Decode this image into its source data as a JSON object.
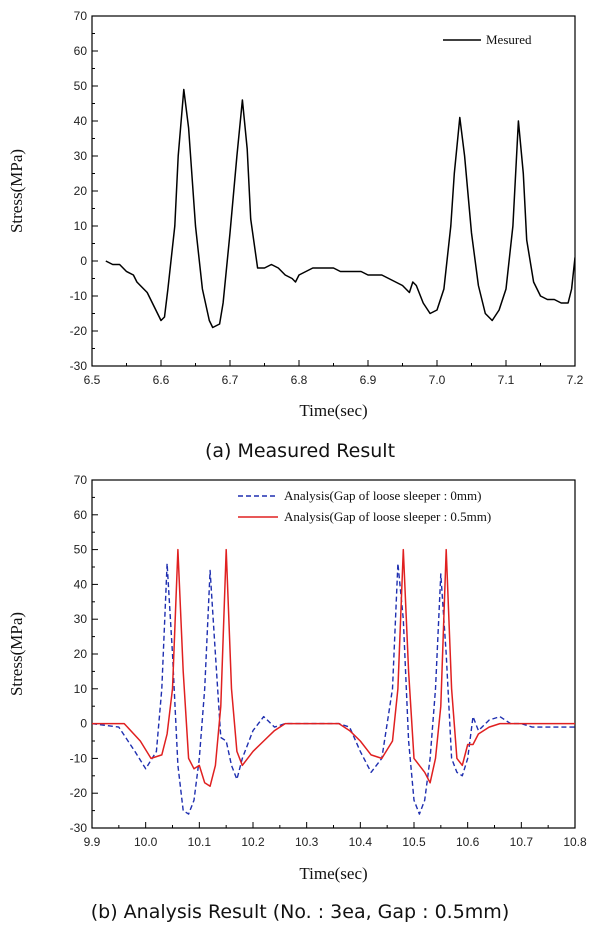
{
  "chart_data": [
    {
      "type": "line",
      "xlabel": "Time(sec)",
      "ylabel": "Stress(MPa)",
      "caption": "(a) Measured Result",
      "xlim": [
        6.5,
        7.2
      ],
      "ylim": [
        -30,
        70
      ],
      "xticks": [
        6.5,
        6.6,
        6.7,
        6.8,
        6.9,
        7.0,
        7.1,
        7.2
      ],
      "yticks": [
        -30,
        -20,
        -10,
        0,
        10,
        20,
        30,
        40,
        50,
        60,
        70
      ],
      "legend_position": "top-right",
      "series": [
        {
          "name": "Mesured",
          "color": "#000000",
          "style": "solid",
          "x": [
            6.52,
            6.53,
            6.54,
            6.55,
            6.56,
            6.565,
            6.57,
            6.58,
            6.59,
            6.6,
            6.605,
            6.61,
            6.62,
            6.625,
            6.633,
            6.64,
            6.65,
            6.66,
            6.67,
            6.675,
            6.685,
            6.69,
            6.7,
            6.71,
            6.718,
            6.725,
            6.73,
            6.74,
            6.75,
            6.76,
            6.77,
            6.78,
            6.79,
            6.795,
            6.8,
            6.81,
            6.82,
            6.83,
            6.84,
            6.85,
            6.86,
            6.87,
            6.88,
            6.89,
            6.9,
            6.91,
            6.92,
            6.93,
            6.94,
            6.95,
            6.96,
            6.965,
            6.97,
            6.98,
            6.99,
            7.0,
            7.01,
            7.02,
            7.025,
            7.033,
            7.04,
            7.05,
            7.06,
            7.07,
            7.08,
            7.09,
            7.1,
            7.11,
            7.118,
            7.125,
            7.13,
            7.14,
            7.15,
            7.16,
            7.17,
            7.18,
            7.19,
            7.195,
            7.2
          ],
          "y": [
            0,
            -1,
            -1,
            -3,
            -4,
            -6,
            -7,
            -9,
            -13,
            -17,
            -16,
            -8,
            10,
            30,
            49,
            38,
            10,
            -8,
            -17,
            -19,
            -18,
            -12,
            8,
            30,
            46,
            32,
            12,
            -2,
            -2,
            -1,
            -2,
            -4,
            -5,
            -6,
            -4,
            -3,
            -2,
            -2,
            -2,
            -2,
            -3,
            -3,
            -3,
            -3,
            -4,
            -4,
            -4,
            -5,
            -6,
            -7,
            -9,
            -6,
            -7,
            -12,
            -15,
            -14,
            -8,
            10,
            25,
            41,
            30,
            8,
            -7,
            -15,
            -17,
            -14,
            -8,
            10,
            40,
            25,
            6,
            -6,
            -10,
            -11,
            -11,
            -12,
            -12,
            -8,
            1
          ]
        }
      ]
    },
    {
      "type": "line",
      "xlabel": "Time(sec)",
      "ylabel": "Stress(MPa)",
      "caption": "(b) Analysis Result (No. : 3ea, Gap : 0.5mm)",
      "xlim": [
        9.9,
        10.8
      ],
      "ylim": [
        -30,
        70
      ],
      "xticks": [
        9.9,
        10.0,
        10.1,
        10.2,
        10.3,
        10.4,
        10.5,
        10.6,
        10.7,
        10.8
      ],
      "yticks": [
        -30,
        -20,
        -10,
        0,
        10,
        20,
        30,
        40,
        50,
        60,
        70
      ],
      "legend_position": "top-right",
      "series": [
        {
          "name": "Analysis(Gap of loose sleeper : 0mm)",
          "color": "#1f2fb0",
          "style": "dashed",
          "x": [
            9.9,
            9.95,
            9.98,
            10.0,
            10.02,
            10.03,
            10.04,
            10.05,
            10.06,
            10.07,
            10.08,
            10.09,
            10.1,
            10.11,
            10.12,
            10.13,
            10.14,
            10.15,
            10.16,
            10.17,
            10.18,
            10.2,
            10.22,
            10.24,
            10.26,
            10.28,
            10.3,
            10.34,
            10.36,
            10.38,
            10.4,
            10.42,
            10.44,
            10.46,
            10.47,
            10.48,
            10.49,
            10.5,
            10.51,
            10.52,
            10.53,
            10.54,
            10.55,
            10.56,
            10.57,
            10.58,
            10.59,
            10.6,
            10.61,
            10.62,
            10.64,
            10.66,
            10.68,
            10.7,
            10.72,
            10.8
          ],
          "y": [
            0,
            -1,
            -8,
            -13,
            -8,
            10,
            46,
            20,
            -12,
            -25,
            -26,
            -22,
            -10,
            10,
            44,
            20,
            -4,
            -5,
            -12,
            -16,
            -10,
            -2,
            2,
            -1,
            0,
            0,
            0,
            0,
            0,
            -1,
            -8,
            -14,
            -10,
            10,
            46,
            30,
            -5,
            -22,
            -26,
            -22,
            -10,
            10,
            43,
            20,
            -10,
            -14,
            -15,
            -10,
            2,
            -2,
            1,
            2,
            0,
            0,
            -1,
            -1
          ]
        },
        {
          "name": "Analysis(Gap of loose sleeper : 0.5mm)",
          "color": "#e02020",
          "style": "solid",
          "x": [
            9.9,
            9.96,
            9.99,
            10.01,
            10.03,
            10.04,
            10.05,
            10.06,
            10.07,
            10.08,
            10.09,
            10.1,
            10.11,
            10.12,
            10.13,
            10.14,
            10.15,
            10.16,
            10.17,
            10.18,
            10.2,
            10.22,
            10.24,
            10.26,
            10.28,
            10.3,
            10.32,
            10.36,
            10.38,
            10.4,
            10.42,
            10.44,
            10.46,
            10.47,
            10.48,
            10.49,
            10.5,
            10.51,
            10.52,
            10.53,
            10.54,
            10.55,
            10.56,
            10.57,
            10.58,
            10.59,
            10.6,
            10.61,
            10.62,
            10.64,
            10.66,
            10.68,
            10.7,
            10.72,
            10.8
          ],
          "y": [
            0,
            0,
            -5,
            -10,
            -9,
            -3,
            10,
            50,
            15,
            -10,
            -13,
            -12,
            -17,
            -18,
            -12,
            5,
            50,
            10,
            -8,
            -12,
            -8,
            -5,
            -2,
            0,
            0,
            0,
            0,
            0,
            -2,
            -5,
            -9,
            -10,
            -5,
            10,
            50,
            15,
            -10,
            -12,
            -14,
            -17,
            -10,
            5,
            50,
            10,
            -10,
            -12,
            -6,
            -6,
            -3,
            -1,
            0,
            0,
            0,
            0,
            0
          ]
        }
      ]
    }
  ]
}
